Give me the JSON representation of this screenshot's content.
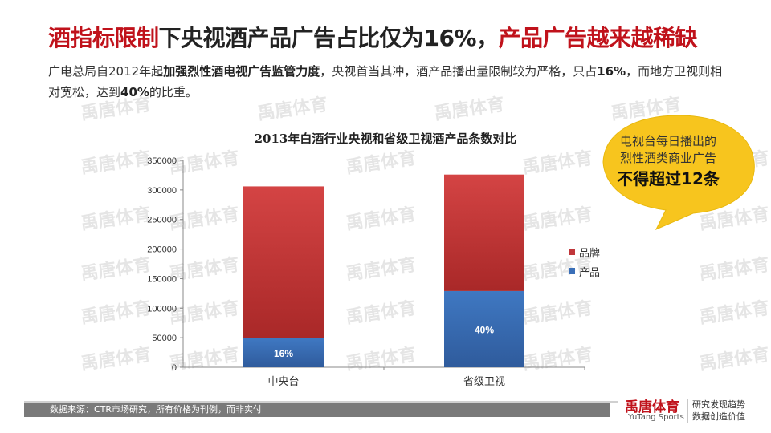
{
  "header": {
    "title_red": "酒指标限制",
    "title_mid": "下央视酒产品广告占比仅为16%，",
    "title_red2": "产品广告越来越稀缺"
  },
  "intro": {
    "p1": "广电总局自2012年起",
    "b1": "加强烈性酒电视广告监管力度",
    "p2": "，央视首当其冲，酒产品播出量限制较为严格，只占",
    "b2": "16%",
    "p3": "，而地方卫视则相对宽松，达到",
    "b3": "40%",
    "p4": "的比重。"
  },
  "watermark": {
    "text": "禹唐体育"
  },
  "callout": {
    "line1": "电视台每日播出的",
    "line2": "烈性酒类商业广告",
    "line3": "不得超过12条",
    "color": "#f7c51e"
  },
  "chart_data": {
    "type": "bar",
    "stacked": true,
    "title": "2013年白酒行业央视和省级卫视酒产品条数对比",
    "categories": [
      "中央台",
      "省级卫视"
    ],
    "series": [
      {
        "name": "产品",
        "values": [
          49000,
          129000
        ],
        "color": "#3a6fb8",
        "labels": [
          "16%",
          "40%"
        ]
      },
      {
        "name": "品牌",
        "values": [
          257000,
          197000
        ],
        "color": "#c0363a"
      }
    ],
    "ylim": [
      0,
      350000
    ],
    "yticks": [
      0,
      50000,
      100000,
      150000,
      200000,
      250000,
      300000,
      350000
    ],
    "legend_position": "right",
    "grid": false
  },
  "footer": {
    "source": "数据来源：CTR市场研究，所有价格为刊例，而非实付",
    "brand": "禹唐体育",
    "brand_en": "YuTang Sports",
    "slogan1": "研究发现趋势",
    "slogan2": "数据创造价值"
  }
}
